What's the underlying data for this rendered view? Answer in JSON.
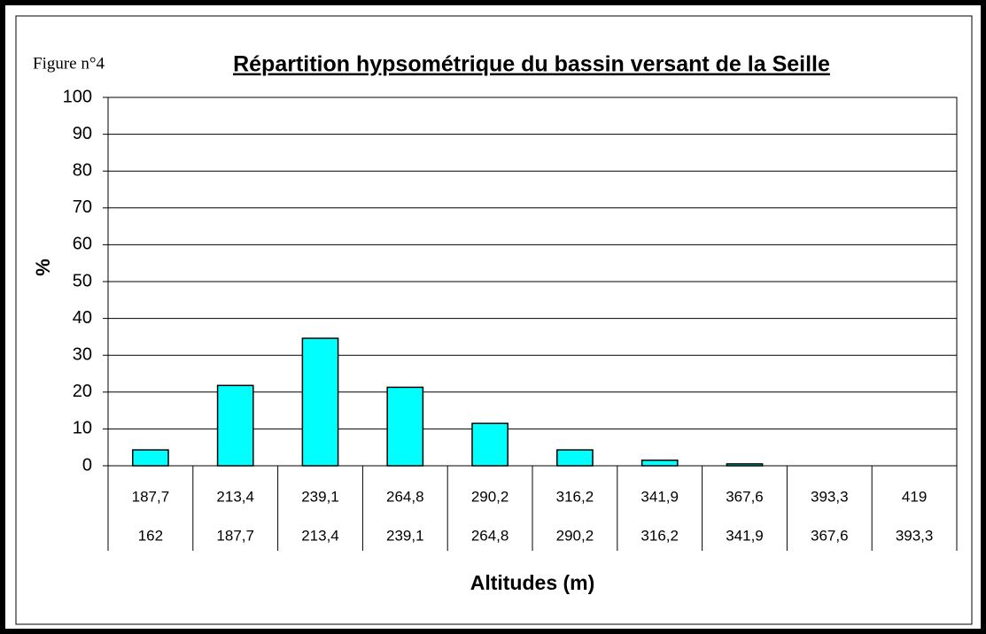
{
  "chart_data": {
    "type": "bar",
    "figure_label": "Figure n°4",
    "title": "Répartition hypsométrique du bassin versant de la Seille",
    "y_label": "%",
    "x_label": "Altitudes (m)",
    "categories": [
      [
        "187,7",
        "162"
      ],
      [
        "213,4",
        "187,7"
      ],
      [
        "239,1",
        "213,4"
      ],
      [
        "264,8",
        "239,1"
      ],
      [
        "290,2",
        "264,8"
      ],
      [
        "316,2",
        "290,2"
      ],
      [
        "341,9",
        "316,2"
      ],
      [
        "367,6",
        "341,9"
      ],
      [
        "393,3",
        "367,6"
      ],
      [
        "419",
        "393,3"
      ]
    ],
    "values": [
      4.3,
      21.8,
      34.6,
      21.3,
      11.5,
      4.3,
      1.5,
      0.5,
      0,
      0
    ],
    "color": "#00ffff",
    "ylim": [
      0,
      100
    ],
    "yticks": [
      0,
      10,
      20,
      30,
      40,
      50,
      60,
      70,
      80,
      90,
      100
    ],
    "grid": true
  }
}
